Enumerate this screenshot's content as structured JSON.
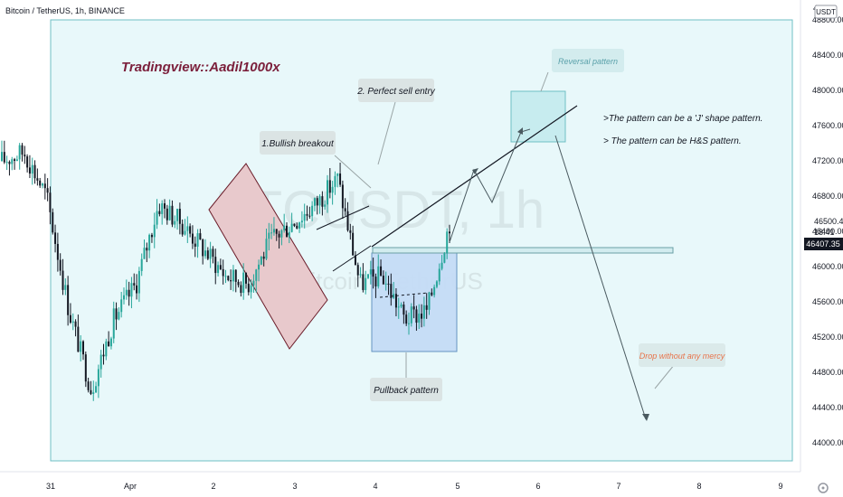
{
  "header": {
    "symbol_title": "Bitcoin / TetherUS, 1h, BINANCE"
  },
  "watermark": {
    "main": "BTCUSDT, 1h",
    "sub": "Bitcoin / TetherUS"
  },
  "price_axis": {
    "currency_label": "USDT",
    "top_partial_label": "4"
  },
  "time_axis": {
    "labels": [
      "31",
      "Apr",
      "2",
      "3",
      "4",
      "5",
      "6",
      "7",
      "8",
      "9"
    ]
  },
  "price_labels": {
    "last_price": "46500.49",
    "countdown": "18:41",
    "current_price": "46407.35"
  },
  "annotations": {
    "author": "Tradingview::Aadil1000x",
    "bullish_breakout": "1.Bullish breakout",
    "perfect_sell": "2. Perfect sell entry",
    "pullback": "Pullback pattern",
    "reversal": "Reversal pattern",
    "note_j_shape": ">The pattern can be a 'J' shape pattern.",
    "note_hs": "> The pattern can be H&S pattern.",
    "drop": "Drop without any mercy"
  },
  "colors": {
    "bull": "#26a69a",
    "bear": "#131722",
    "highlight_box_fill": "#e8f8fa",
    "highlight_box_stroke": "#6fbfc4",
    "pink_channel_fill": "#e8c9cc",
    "blue_box_fill": "#c5dcf6",
    "label_bg": "#d9e6e6",
    "author_color": "#7b1f3b",
    "drop_color": "#e8734a",
    "price_badge": "#131722"
  },
  "chart_data": {
    "type": "candlestick",
    "title": "Bitcoin / TetherUS, 1h, BINANCE",
    "xlabel": "",
    "ylabel": "",
    "y_axis_ticks": [
      44000,
      44400,
      44800,
      45200,
      45600,
      46000,
      46400,
      46800,
      47200,
      47600,
      48000,
      48400,
      48800
    ],
    "ylim": [
      43800,
      49100
    ],
    "x_ticks": [
      "31",
      "Apr",
      "2",
      "3",
      "4",
      "5",
      "6",
      "7",
      "8",
      "9"
    ],
    "last_price": 46500.49,
    "current_price": 46407.35,
    "grid": false,
    "approx_close_path": [
      {
        "x": "Mar 31 00:00",
        "y": 47200
      },
      {
        "x": "Mar 31 12:00",
        "y": 47300
      },
      {
        "x": "Mar 31 20:00",
        "y": 46800
      },
      {
        "x": "Apr 1 00:00",
        "y": 45500
      },
      {
        "x": "Apr 1 06:00",
        "y": 44600
      },
      {
        "x": "Apr 1 12:00",
        "y": 45400
      },
      {
        "x": "Apr 1 18:00",
        "y": 45800
      },
      {
        "x": "Apr 2 00:00",
        "y": 46700
      },
      {
        "x": "Apr 2 12:00",
        "y": 46500
      },
      {
        "x": "Apr 2 18:00",
        "y": 46200
      },
      {
        "x": "Apr 3 00:00",
        "y": 45900
      },
      {
        "x": "Apr 3 06:00",
        "y": 45800
      },
      {
        "x": "Apr 3 12:00",
        "y": 46300
      },
      {
        "x": "Apr 3 20:00",
        "y": 46500
      },
      {
        "x": "Apr 4 00:00",
        "y": 46700
      },
      {
        "x": "Apr 4 02:00",
        "y": 47000
      },
      {
        "x": "Apr 4 06:00",
        "y": 45800
      },
      {
        "x": "Apr 4 12:00",
        "y": 45900
      },
      {
        "x": "Apr 4 18:00",
        "y": 45400
      },
      {
        "x": "Apr 4 20:00",
        "y": 45500
      },
      {
        "x": "Apr 5 00:00",
        "y": 46500
      }
    ]
  }
}
